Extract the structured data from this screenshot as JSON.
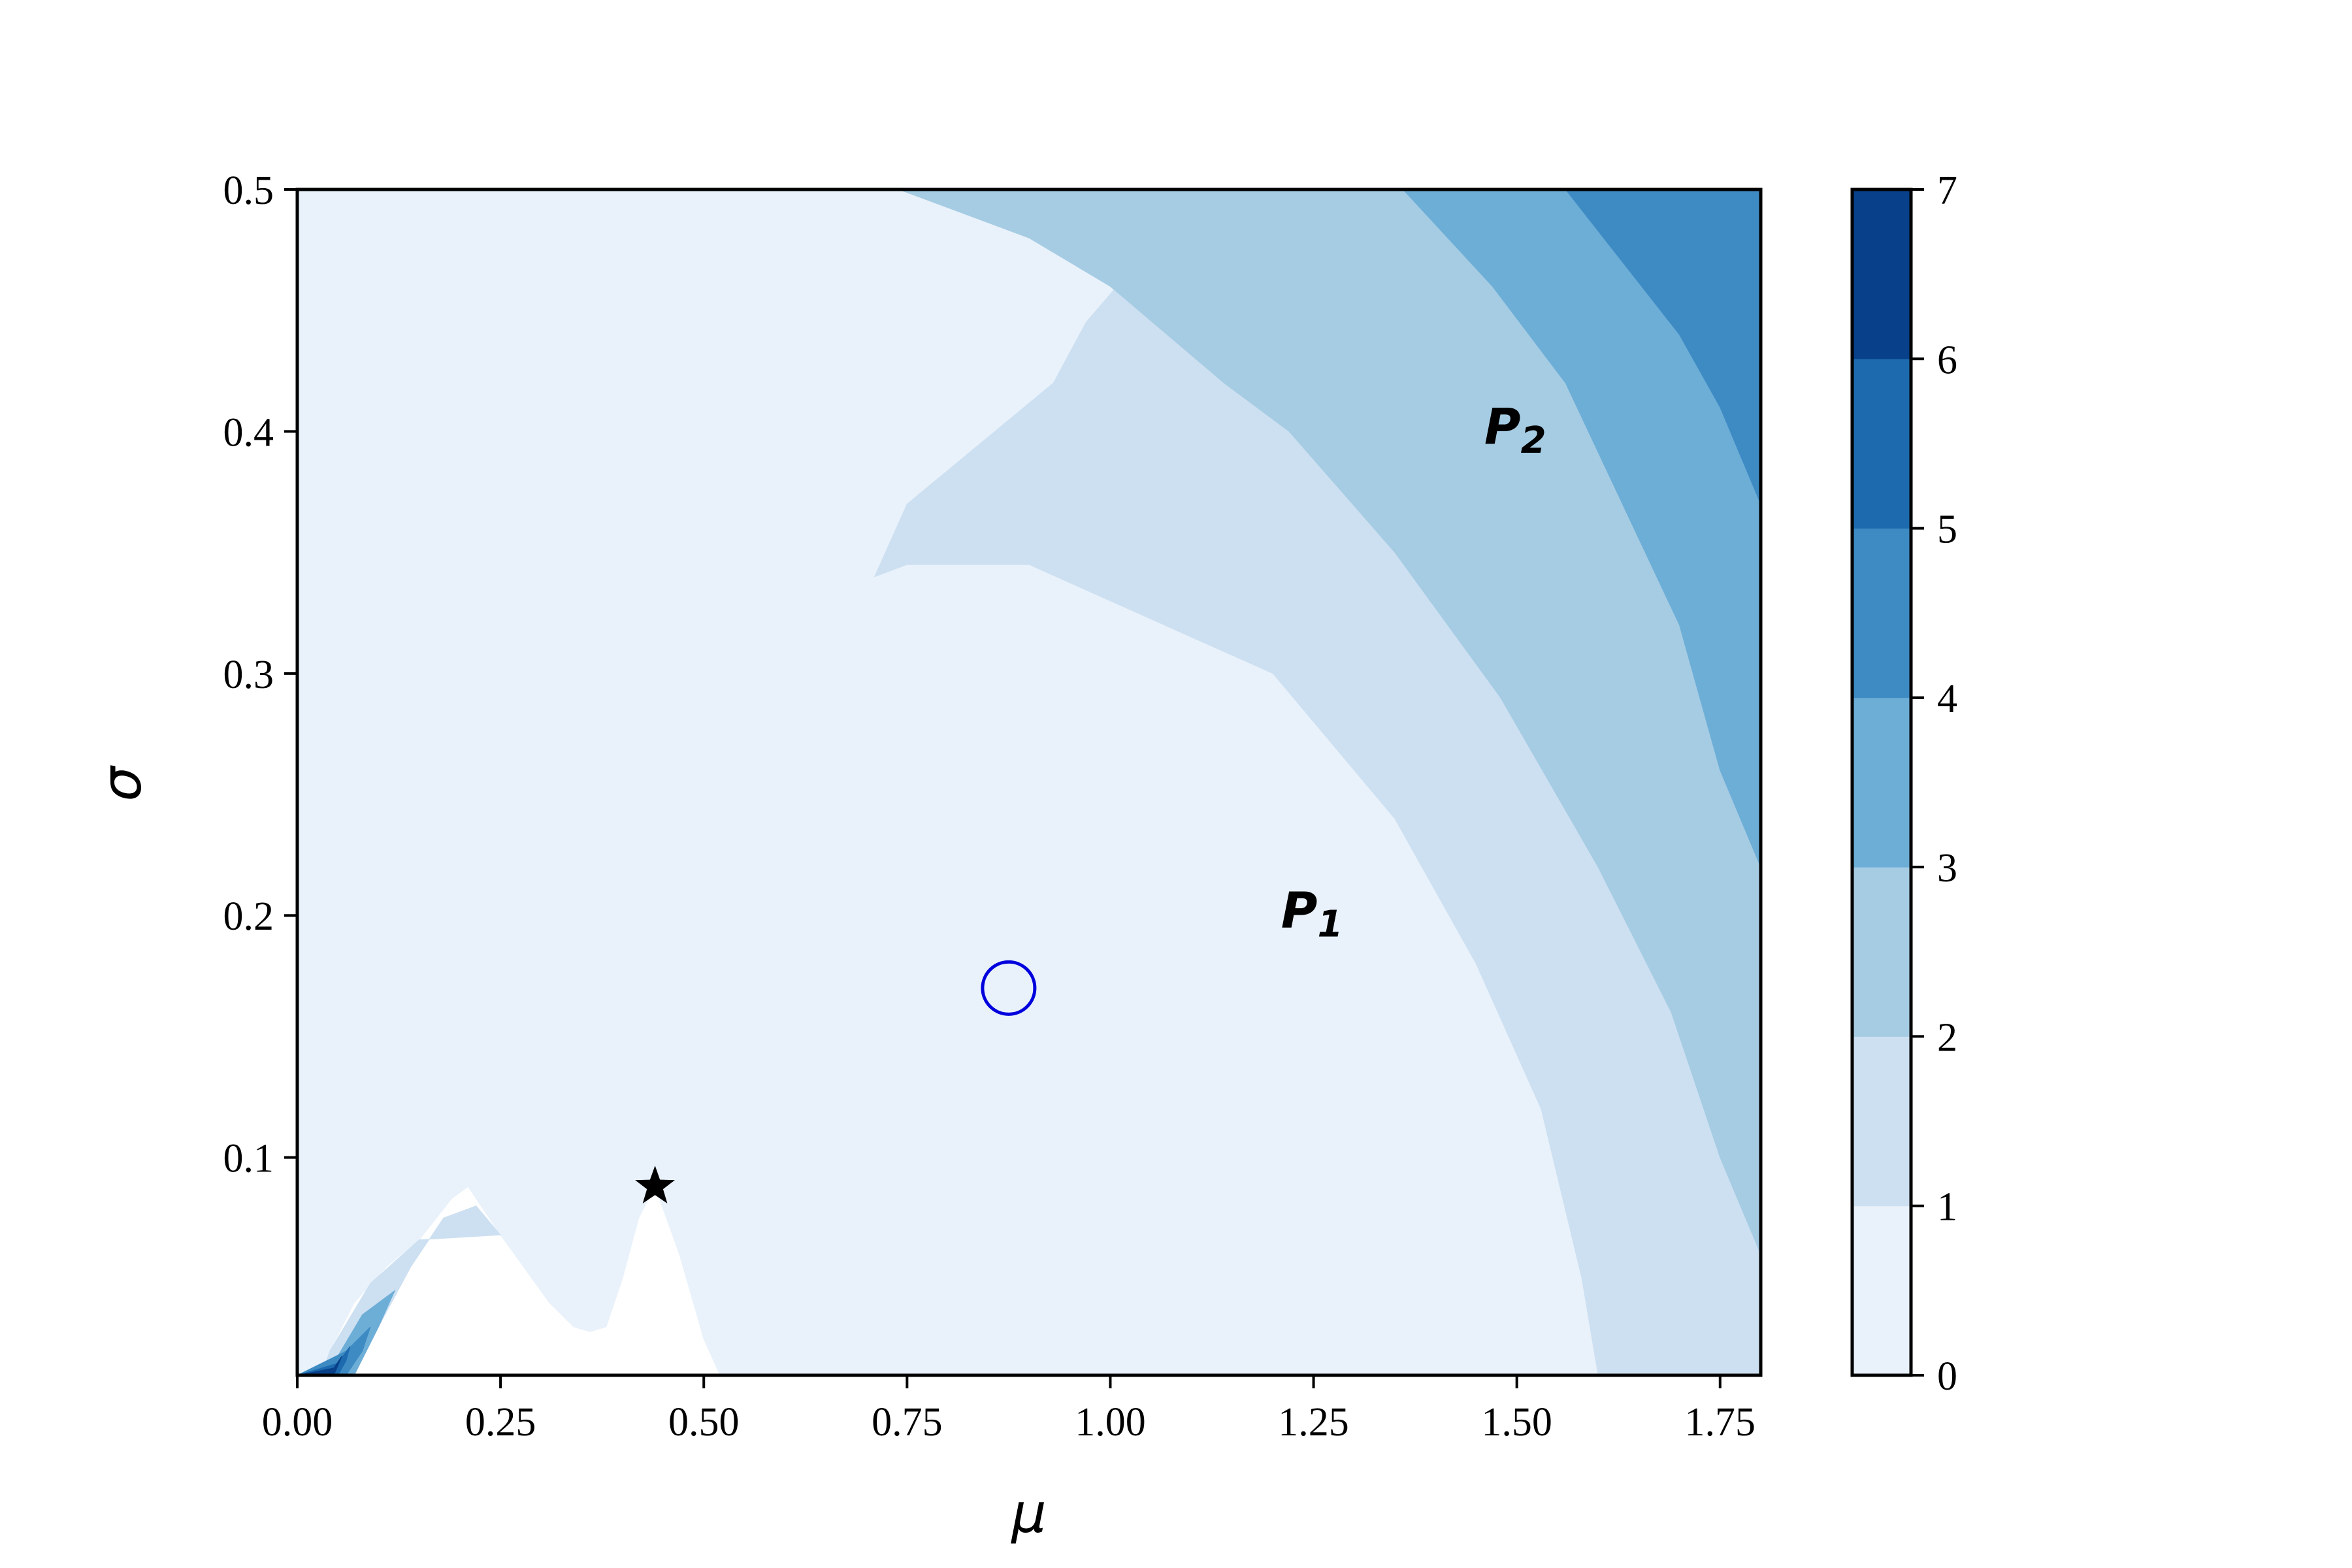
{
  "chart_data": {
    "type": "contourf",
    "xlabel": "μ",
    "ylabel": "σ",
    "xlim": [
      0.0,
      1.8
    ],
    "ylim": [
      0.01,
      0.5
    ],
    "xticks": [
      {
        "value": 0.0,
        "label": "0.00"
      },
      {
        "value": 0.25,
        "label": "0.25"
      },
      {
        "value": 0.5,
        "label": "0.50"
      },
      {
        "value": 0.75,
        "label": "0.75"
      },
      {
        "value": 1.0,
        "label": "1.00"
      },
      {
        "value": 1.25,
        "label": "1.25"
      },
      {
        "value": 1.5,
        "label": "1.50"
      },
      {
        "value": 1.75,
        "label": "1.75"
      }
    ],
    "yticks": [
      {
        "value": 0.1,
        "label": "0.1"
      },
      {
        "value": 0.2,
        "label": "0.2"
      },
      {
        "value": 0.3,
        "label": "0.3"
      },
      {
        "value": 0.4,
        "label": "0.4"
      },
      {
        "value": 0.5,
        "label": "0.5"
      }
    ],
    "grid": false,
    "colorbar": {
      "levels": [
        0,
        1,
        2,
        3,
        4,
        5,
        6,
        7
      ],
      "labels": [
        "0",
        "1",
        "2",
        "3",
        "4",
        "5",
        "6",
        "7"
      ],
      "colors": [
        "#e9f2fb",
        "#cde0f1",
        "#a6cce3",
        "#6daed7",
        "#3e8bc4",
        "#1d6aaf",
        "#08418a"
      ]
    },
    "contour_bands": [
      {
        "level": "1-2",
        "polygon": [
          [
            0.03,
            0.01
          ],
          [
            0.04,
            0.02
          ],
          [
            0.07,
            0.04
          ],
          [
            0.11,
            0.055
          ],
          [
            0.15,
            0.066
          ],
          [
            0.19,
            0.083
          ],
          [
            0.21,
            0.088
          ],
          [
            0.25,
            0.068
          ],
          [
            0.31,
            0.04
          ],
          [
            0.34,
            0.03
          ],
          [
            0.36,
            0.028
          ],
          [
            0.38,
            0.03
          ],
          [
            0.4,
            0.05
          ],
          [
            0.42,
            0.075
          ],
          [
            0.44,
            0.088
          ],
          [
            0.47,
            0.06
          ],
          [
            0.5,
            0.025
          ],
          [
            0.52,
            0.01
          ],
          [
            1.6,
            0.01
          ],
          [
            1.58,
            0.05
          ],
          [
            1.53,
            0.12
          ],
          [
            1.45,
            0.18
          ],
          [
            1.35,
            0.24
          ],
          [
            1.2,
            0.3
          ],
          [
            1.0,
            0.33
          ],
          [
            0.9,
            0.345
          ],
          [
            0.75,
            0.345
          ],
          [
            0.71,
            0.34
          ],
          [
            0.75,
            0.37
          ],
          [
            0.93,
            0.42
          ],
          [
            0.97,
            0.445
          ],
          [
            1.11,
            0.5
          ],
          [
            0.0,
            0.5
          ],
          [
            0.0,
            0.01
          ]
        ]
      },
      {
        "level": "2-3",
        "polygon": [
          [
            0.0,
            0.01
          ],
          [
            0.07,
            0.01
          ],
          [
            0.1,
            0.03
          ],
          [
            0.14,
            0.055
          ],
          [
            0.18,
            0.075
          ],
          [
            0.22,
            0.08
          ],
          [
            0.25,
            0.068
          ],
          [
            0.15,
            0.066
          ],
          [
            0.09,
            0.048
          ],
          [
            0.04,
            0.02
          ],
          [
            0.03,
            0.01
          ]
        ]
      },
      {
        "level": "2-3b",
        "polygon": [
          [
            1.6,
            0.01
          ],
          [
            1.8,
            0.01
          ],
          [
            1.8,
            0.06
          ],
          [
            1.75,
            0.1
          ],
          [
            1.69,
            0.16
          ],
          [
            1.6,
            0.22
          ],
          [
            1.48,
            0.29
          ],
          [
            1.35,
            0.35
          ],
          [
            1.22,
            0.4
          ],
          [
            1.14,
            0.42
          ],
          [
            1.0,
            0.46
          ],
          [
            0.9,
            0.48
          ],
          [
            0.74,
            0.5
          ],
          [
            1.11,
            0.5
          ],
          [
            0.97,
            0.445
          ],
          [
            0.93,
            0.42
          ],
          [
            0.75,
            0.37
          ],
          [
            0.71,
            0.34
          ],
          [
            0.75,
            0.345
          ],
          [
            0.9,
            0.345
          ],
          [
            1.0,
            0.33
          ],
          [
            1.2,
            0.3
          ],
          [
            1.35,
            0.24
          ],
          [
            1.45,
            0.18
          ],
          [
            1.53,
            0.12
          ],
          [
            1.58,
            0.05
          ]
        ]
      },
      {
        "level": "3-4",
        "polygon": [
          [
            1.8,
            0.06
          ],
          [
            1.8,
            0.22
          ],
          [
            1.75,
            0.26
          ],
          [
            1.7,
            0.32
          ],
          [
            1.63,
            0.37
          ],
          [
            1.56,
            0.42
          ],
          [
            1.47,
            0.46
          ],
          [
            1.36,
            0.5
          ],
          [
            0.74,
            0.5
          ],
          [
            0.9,
            0.48
          ],
          [
            1.0,
            0.46
          ],
          [
            1.14,
            0.42
          ],
          [
            1.22,
            0.4
          ],
          [
            1.35,
            0.35
          ],
          [
            1.48,
            0.29
          ],
          [
            1.6,
            0.22
          ],
          [
            1.69,
            0.16
          ],
          [
            1.75,
            0.1
          ]
        ]
      },
      {
        "level": "4-5",
        "polygon": [
          [
            1.8,
            0.22
          ],
          [
            1.8,
            0.37
          ],
          [
            1.75,
            0.41
          ],
          [
            1.7,
            0.44
          ],
          [
            1.63,
            0.47
          ],
          [
            1.56,
            0.5
          ],
          [
            1.36,
            0.5
          ],
          [
            1.47,
            0.46
          ],
          [
            1.56,
            0.42
          ],
          [
            1.63,
            0.37
          ],
          [
            1.7,
            0.32
          ],
          [
            1.75,
            0.26
          ]
        ]
      },
      {
        "level": "5-6",
        "polygon": [
          [
            1.8,
            0.37
          ],
          [
            1.8,
            0.5
          ],
          [
            1.56,
            0.5
          ],
          [
            1.63,
            0.47
          ],
          [
            1.7,
            0.44
          ],
          [
            1.75,
            0.41
          ]
        ]
      },
      {
        "level": "corner-3",
        "polygon": [
          [
            0.0,
            0.01
          ],
          [
            0.07,
            0.01
          ],
          [
            0.1,
            0.03
          ],
          [
            0.12,
            0.045
          ],
          [
            0.08,
            0.035
          ],
          [
            0.05,
            0.018
          ],
          [
            0.04,
            0.01
          ]
        ]
      },
      {
        "level": "corner-4",
        "polygon": [
          [
            0.0,
            0.01
          ],
          [
            0.06,
            0.01
          ],
          [
            0.08,
            0.02
          ],
          [
            0.09,
            0.03
          ],
          [
            0.06,
            0.02
          ]
        ]
      },
      {
        "level": "corner-5",
        "polygon": [
          [
            0.0,
            0.01
          ],
          [
            0.05,
            0.01
          ],
          [
            0.06,
            0.016
          ],
          [
            0.065,
            0.022
          ],
          [
            0.05,
            0.015
          ]
        ]
      },
      {
        "level": "corner-6",
        "polygon": [
          [
            0.0,
            0.01
          ],
          [
            0.045,
            0.01
          ],
          [
            0.05,
            0.014
          ],
          [
            0.055,
            0.018
          ],
          [
            0.045,
            0.013
          ]
        ]
      }
    ],
    "markers": [
      {
        "type": "star",
        "x": 0.44,
        "y": 0.088,
        "color": "#000000"
      },
      {
        "type": "circle",
        "x": 0.875,
        "y": 0.17,
        "color": "#0000dd"
      }
    ],
    "annotations": [
      {
        "text": "P",
        "sub": "1",
        "x": 1.21,
        "y": 0.195
      },
      {
        "text": "P",
        "sub": "2",
        "x": 1.46,
        "y": 0.395
      }
    ]
  }
}
